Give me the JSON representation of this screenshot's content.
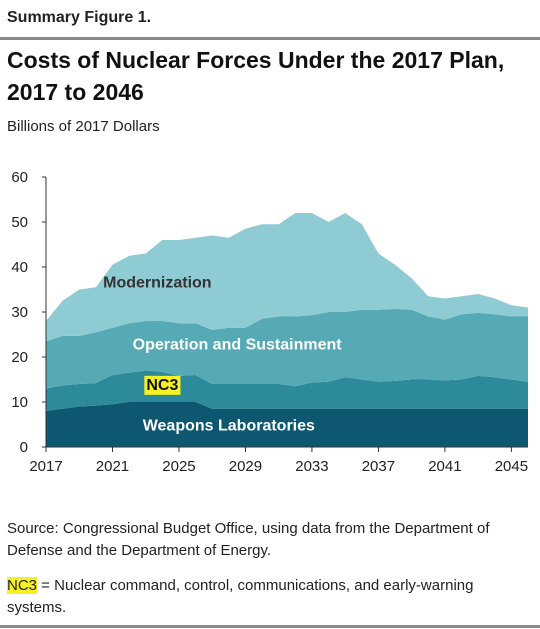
{
  "figure_label": "Summary Figure 1.",
  "chart_data": {
    "type": "area",
    "stacked": true,
    "title": "Costs of Nuclear Forces Under the 2017 Plan, 2017 to 2046",
    "ylabel": "Billions of 2017 Dollars",
    "xlabel": "",
    "ylim": [
      0,
      60
    ],
    "yticks": [
      0,
      10,
      20,
      30,
      40,
      50,
      60
    ],
    "xlim": [
      2017,
      2046
    ],
    "xticks": [
      2017,
      2021,
      2025,
      2029,
      2033,
      2037,
      2041,
      2045
    ],
    "x": [
      2017,
      2018,
      2019,
      2020,
      2021,
      2022,
      2023,
      2024,
      2025,
      2026,
      2027,
      2028,
      2029,
      2030,
      2031,
      2032,
      2033,
      2034,
      2035,
      2036,
      2037,
      2038,
      2039,
      2040,
      2041,
      2042,
      2043,
      2044,
      2045,
      2046
    ],
    "series": [
      {
        "name": "Weapons Laboratories",
        "color": "#0e5770",
        "values": [
          8,
          8.5,
          9,
          9.2,
          9.5,
          10,
          10,
          10,
          10,
          10,
          8.5,
          8.5,
          8.5,
          8.5,
          8.5,
          8.5,
          8.5,
          8.5,
          8.5,
          8.5,
          8.5,
          8.5,
          8.5,
          8.5,
          8.5,
          8.5,
          8.5,
          8.5,
          8.5,
          8.5
        ]
      },
      {
        "name": "NC3",
        "color": "#2c8a9a",
        "values": [
          5,
          5.2,
          5,
          5,
          6.5,
          6.5,
          7,
          6.7,
          5.8,
          6,
          5.5,
          5.5,
          5.5,
          5.5,
          5.5,
          5,
          5.8,
          6,
          7,
          6.5,
          6,
          6.2,
          6.5,
          6.5,
          6.3,
          6.5,
          7.3,
          7,
          6.5,
          6
        ]
      },
      {
        "name": "Operation and Sustainment",
        "color": "#56aab5",
        "values": [
          10.5,
          11,
          10.7,
          11.3,
          10.5,
          11,
          11,
          11.3,
          11.7,
          11.5,
          12,
          12.5,
          12.5,
          14.5,
          15,
          15.5,
          15,
          15.5,
          14.5,
          15.5,
          16,
          16,
          15.5,
          14,
          13.5,
          14.5,
          14,
          14,
          14,
          14.5
        ]
      },
      {
        "name": "Modernization",
        "color": "#8fcbd2",
        "values": [
          4.5,
          7.8,
          10.3,
          10,
          14,
          15,
          15,
          18,
          18.5,
          19,
          21,
          20,
          22,
          21,
          20.5,
          23,
          22.7,
          20,
          22,
          19,
          12.5,
          9.8,
          7,
          4.5,
          4.7,
          4,
          4.2,
          3.5,
          2.5,
          2
        ]
      }
    ]
  },
  "source_note": "Source: Congressional Budget Office, using data from the Department of Defense and the Department of Energy.",
  "footnote": {
    "term": "NC3",
    "text": " = Nuclear command, control, communications, and early-warning systems."
  }
}
